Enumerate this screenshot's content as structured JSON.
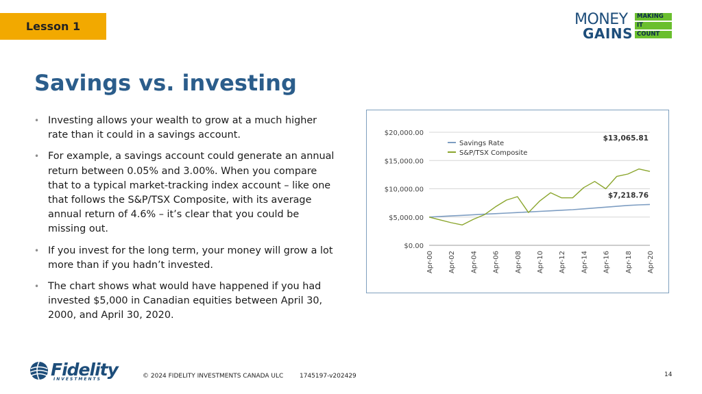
{
  "lesson_tag": "Lesson 1",
  "brand": {
    "line1": "MONEY",
    "line2": "GAINS",
    "tags": [
      "MAKING",
      "IT",
      "COUNT"
    ]
  },
  "title": "Savings vs. investing",
  "bullets": [
    "Investing allows your wealth to grow at a much higher rate than it could in a savings account.",
    "For example, a savings account could generate an annual return between 0.05% and 3.00%. When you compare that to a typical market-tracking index account – like one that follows the S&P/TSX Composite, with its average annual return of 4.6% – it’s clear that you could be missing out.",
    "If you invest for the long term, your money will grow a lot more than if you hadn’t invested.",
    "The chart shows what would have happened if you had invested $5,000 in Canadian equities between April 30, 2000, and April 30, 2020."
  ],
  "chart_data": {
    "type": "line",
    "x": [
      "Apr-00",
      "Apr-01",
      "Apr-02",
      "Apr-03",
      "Apr-04",
      "Apr-05",
      "Apr-06",
      "Apr-07",
      "Apr-08",
      "Apr-09",
      "Apr-10",
      "Apr-11",
      "Apr-12",
      "Apr-13",
      "Apr-14",
      "Apr-15",
      "Apr-16",
      "Apr-17",
      "Apr-18",
      "Apr-19",
      "Apr-20"
    ],
    "x_tick_labels": [
      "Apr-00",
      "Apr-02",
      "Apr-04",
      "Apr-06",
      "Apr-08",
      "Apr-10",
      "Apr-12",
      "Apr-14",
      "Apr-16",
      "Apr-18",
      "Apr-20"
    ],
    "y_tick_labels": [
      "$0.00",
      "$5,000.00",
      "$10,000.00",
      "$15,000.00",
      "$20,000.00"
    ],
    "ylim": [
      0,
      20000
    ],
    "grid": true,
    "legend_position": "top-left",
    "series": [
      {
        "name": "Savings Rate",
        "color": "#7d9dc2",
        "values": [
          5000,
          5100,
          5200,
          5300,
          5400,
          5500,
          5600,
          5700,
          5800,
          5900,
          6000,
          6100,
          6200,
          6300,
          6450,
          6600,
          6750,
          6900,
          7050,
          7150,
          7218.76
        ]
      },
      {
        "name": "S&P/TSX Composite",
        "color": "#8aa52c",
        "values": [
          5000,
          4500,
          4000,
          3600,
          4600,
          5400,
          6800,
          8000,
          8600,
          5800,
          7800,
          9300,
          8400,
          8400,
          10200,
          11300,
          10000,
          12200,
          12600,
          13500,
          13065.81
        ]
      }
    ],
    "annotations": [
      "$13,065.81",
      "$7,218.76"
    ]
  },
  "footer": {
    "logo_text": "Fidelity",
    "logo_sub": "INVESTMENTS",
    "copyright": "© 2024 FIDELITY INVESTMENTS CANADA ULC",
    "doc_id": "1745197-v202429",
    "page_number": "14"
  },
  "colors": {
    "accent_orange": "#f2a900",
    "title_blue": "#2b5d8b",
    "brand_green": "#6abf2e",
    "brand_navy": "#1d4d7a"
  }
}
